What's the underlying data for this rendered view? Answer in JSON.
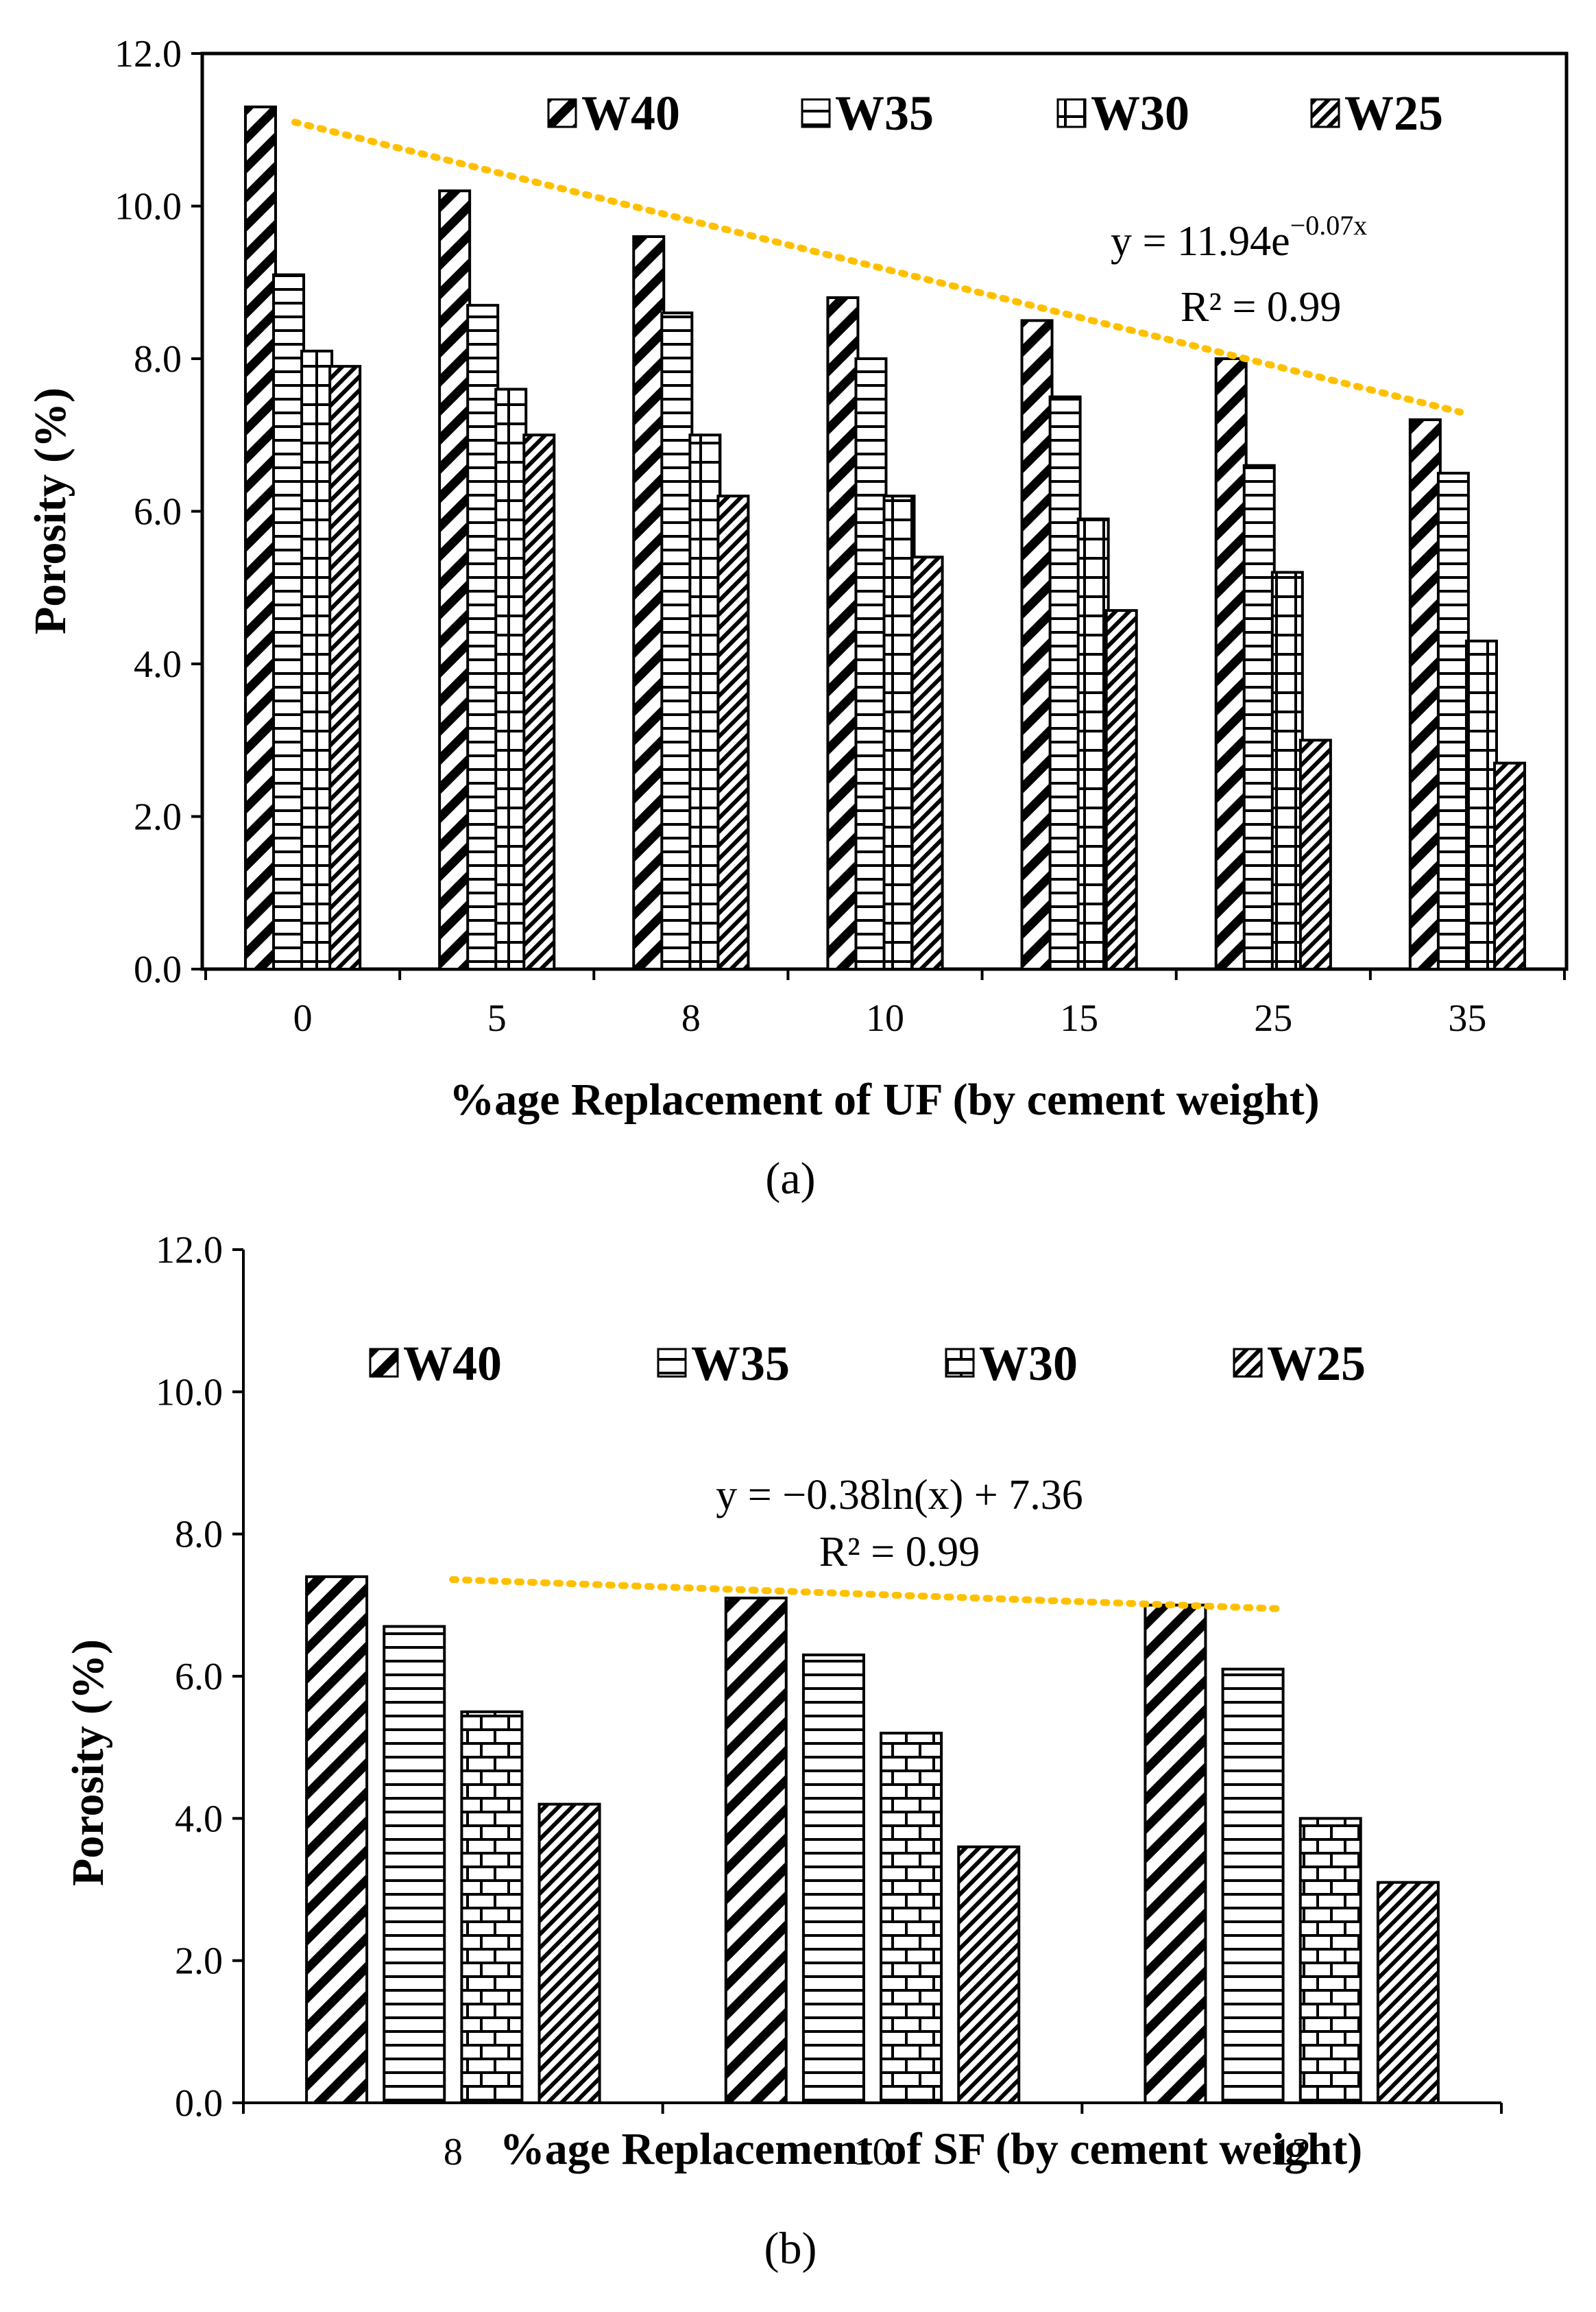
{
  "chart_data": [
    {
      "type": "bar",
      "panel_label": "(a)",
      "categories": [
        "0",
        "5",
        "8",
        "10",
        "15",
        "25",
        "35"
      ],
      "series": [
        {
          "name": "W40",
          "values": [
            11.3,
            10.2,
            9.6,
            8.8,
            8.5,
            8.0,
            7.2
          ]
        },
        {
          "name": "W35",
          "values": [
            9.1,
            8.7,
            8.6,
            8.0,
            7.5,
            6.6,
            6.5
          ]
        },
        {
          "name": "W30",
          "values": [
            8.1,
            7.6,
            7.0,
            6.2,
            5.9,
            5.2,
            4.3
          ]
        },
        {
          "name": "W25",
          "values": [
            7.9,
            7.0,
            6.2,
            5.4,
            4.7,
            3.0,
            2.7
          ]
        }
      ],
      "xlabel": "%age Replacement of UF (by cement weight)",
      "ylabel": "Porosity (%)",
      "ylim": [
        0,
        12
      ],
      "yticks": [
        "0.0",
        "2.0",
        "4.0",
        "6.0",
        "8.0",
        "10.0",
        "12.0"
      ],
      "grid": false,
      "legend_position": "top",
      "trendline": {
        "type": "exponential",
        "color": "#FFC000",
        "start_value": 11.1,
        "end_value": 7.3,
        "equation_prefix": "y = 11.94e",
        "equation_exponent": "−0.07x",
        "r_squared": "R² = 0.99"
      }
    },
    {
      "type": "bar",
      "panel_label": "(b)",
      "categories": [
        "8",
        "10",
        "12"
      ],
      "series": [
        {
          "name": "W40",
          "values": [
            7.4,
            7.1,
            7.0
          ]
        },
        {
          "name": "W35",
          "values": [
            6.7,
            6.3,
            6.1
          ]
        },
        {
          "name": "W30",
          "values": [
            5.5,
            5.2,
            4.0
          ]
        },
        {
          "name": "W25",
          "values": [
            4.2,
            3.6,
            3.1
          ]
        }
      ],
      "xlabel": "%age Replacement of SF (by cement weight)",
      "ylabel": "Porosity (%)",
      "ylim": [
        0,
        12
      ],
      "yticks": [
        "0.0",
        "2.0",
        "4.0",
        "6.0",
        "8.0",
        "10.0",
        "12.0"
      ],
      "grid": false,
      "legend_position": "top",
      "trendline": {
        "type": "logarithmic",
        "color": "#FFC000",
        "start_value": 7.36,
        "end_value": 6.95,
        "equation": "y = −0.38ln(x) + 7.36",
        "r_squared": "R² = 0.99"
      }
    }
  ]
}
